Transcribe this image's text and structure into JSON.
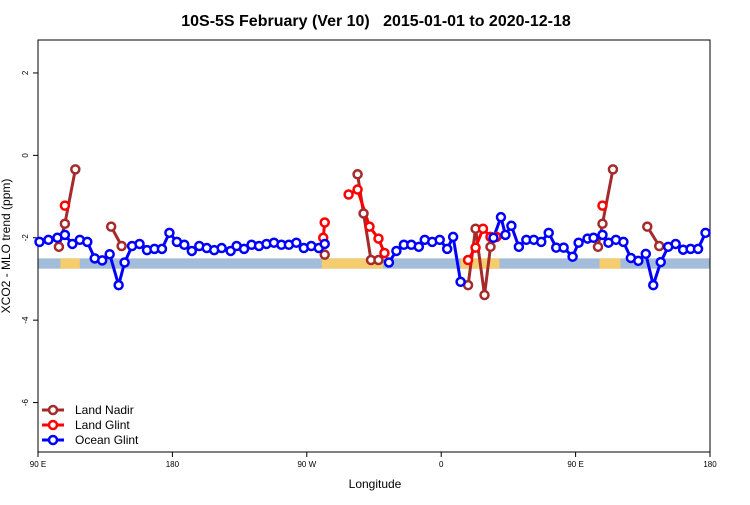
{
  "chart_data": {
    "type": "line",
    "title": "10S-5S February (Ver 10)   2015-01-01 to 2020-12-18",
    "xlabel": "Longitude",
    "ylabel": "XCO2 - MLO trend (ppm)",
    "xlim": [
      90,
      540
    ],
    "xticks": [
      {
        "value": 90,
        "label": "90 E"
      },
      180,
      {
        "value": 270,
        "label": "90 W"
      },
      {
        "value": 360,
        "label": "0"
      },
      {
        "value": 450,
        "label": "90 E"
      },
      {
        "value": 540,
        "label": "180"
      }
    ],
    "ylim": [
      -7.2,
      2.8
    ],
    "yticks": [
      2,
      0,
      -2,
      -4,
      -6
    ],
    "legend": "bottom-left",
    "band": {
      "ymin": -2.75,
      "ymax": -2.5,
      "color": "#a3bcd9",
      "land_color": "#f5cd6e",
      "land_spans": [
        [
          105,
          118
        ],
        [
          280,
          321
        ],
        [
          373,
          399
        ],
        [
          466,
          480
        ]
      ]
    },
    "series": [
      {
        "name": "Land Nadir",
        "color": "#a52a2a",
        "x": [
          104,
          108,
          115,
          139,
          146,
          282,
          304,
          308,
          313,
          318,
          378,
          383,
          389,
          393,
          465,
          468,
          475,
          498,
          506
        ],
        "values": [
          -2.22,
          -1.66,
          -0.34,
          -1.73,
          -2.2,
          -2.41,
          -0.46,
          -1.41,
          -2.54,
          -2.54,
          -3.15,
          -1.78,
          -3.39,
          -2.22,
          -2.22,
          -1.66,
          -0.34,
          -1.73,
          -2.2
        ]
      },
      {
        "name": "Land Glint",
        "color": "#ff0000",
        "x": [
          108,
          281,
          282,
          298,
          304,
          312,
          318,
          322,
          378,
          383,
          388,
          393,
          397,
          468
        ],
        "values": [
          -1.22,
          -2.0,
          -1.63,
          -0.95,
          -0.83,
          -1.73,
          -2.02,
          -2.37,
          -2.54,
          -2.24,
          -1.78,
          -1.98,
          -1.98,
          -1.22
        ]
      },
      {
        "name": "Ocean Glint",
        "color": "#0000ff",
        "x": [
          91,
          97,
          103,
          108,
          113,
          118,
          123,
          128,
          133,
          138,
          144,
          148,
          153,
          158,
          163,
          168,
          173,
          178,
          183,
          188,
          193,
          198,
          203,
          208,
          213,
          219,
          223,
          228,
          233,
          238,
          243,
          248,
          253,
          258,
          263,
          268,
          273,
          278,
          282,
          325,
          330,
          335,
          340,
          345,
          349,
          354,
          359,
          364,
          368,
          373,
          395,
          400,
          403,
          407,
          412,
          417,
          422,
          427,
          432,
          437,
          442,
          448,
          452,
          458,
          462,
          468,
          472,
          477,
          482,
          487,
          492,
          497,
          502,
          507,
          512,
          517,
          522,
          527,
          532,
          537
        ],
        "values": [
          -2.1,
          -2.05,
          -2.0,
          -1.93,
          -2.15,
          -2.05,
          -2.1,
          -2.5,
          -2.55,
          -2.4,
          -3.15,
          -2.6,
          -2.2,
          -2.15,
          -2.3,
          -2.27,
          -2.27,
          -1.88,
          -2.1,
          -2.17,
          -2.32,
          -2.2,
          -2.25,
          -2.3,
          -2.25,
          -2.32,
          -2.2,
          -2.27,
          -2.17,
          -2.2,
          -2.15,
          -2.12,
          -2.17,
          -2.17,
          -2.12,
          -2.25,
          -2.2,
          -2.25,
          -2.15,
          -2.6,
          -2.32,
          -2.17,
          -2.17,
          -2.22,
          -2.05,
          -2.1,
          -2.05,
          -2.27,
          -1.98,
          -3.07,
          -2.0,
          -1.5,
          -1.93,
          -1.71,
          -2.22,
          -2.05,
          -2.05,
          -2.1,
          -1.88,
          -2.24,
          -2.24,
          -2.46,
          -2.12,
          -2.02,
          -2.0,
          -1.93,
          -2.12,
          -2.05,
          -2.1,
          -2.49,
          -2.56,
          -2.39,
          -3.15,
          -2.59,
          -2.22,
          -2.15,
          -2.29,
          -2.27,
          -2.27,
          -1.88
        ]
      }
    ]
  }
}
